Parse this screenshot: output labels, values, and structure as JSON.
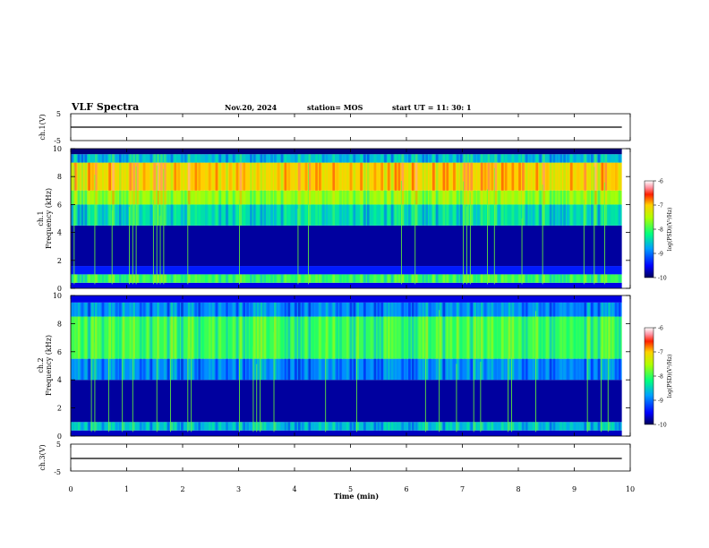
{
  "header": {
    "title": "VLF Spectra",
    "date": "Nov.20, 2024",
    "station": "station= MOS",
    "start": "start  UT =   11: 30: 1"
  },
  "chart_data": [
    {
      "type": "line",
      "panel": "ch1-waveform",
      "ylabel": "ch.1(V)",
      "ylim": [
        -5,
        5
      ],
      "yticks": [
        "5",
        "-5"
      ],
      "xlim": [
        0,
        10
      ],
      "series": [
        {
          "values_summary": [
            0,
            0
          ],
          "x": [
            0,
            9.85
          ]
        }
      ]
    },
    {
      "type": "heatmap",
      "panel": "ch1-spectrogram",
      "ylabel": "ch.1\nFrequency (kHz)",
      "ylim": [
        0,
        10
      ],
      "yticks": [
        "0",
        "2",
        "4",
        "6",
        "8",
        "10"
      ],
      "xlim": [
        0,
        10
      ],
      "data_end_min": 9.85,
      "colorbar": {
        "label": "log(PSD)(V²/Hz)",
        "range": [
          -10,
          -6
        ],
        "ticks": [
          "-6",
          "-7",
          "-8",
          "-9",
          "-10"
        ]
      },
      "bands": [
        {
          "from_khz": 0.0,
          "to_khz": 0.4,
          "level": -9.6
        },
        {
          "from_khz": 0.4,
          "to_khz": 1.0,
          "level": -8.0
        },
        {
          "from_khz": 1.0,
          "to_khz": 1.6,
          "level": -9.4
        },
        {
          "from_khz": 1.6,
          "to_khz": 4.5,
          "level": -9.8
        },
        {
          "from_khz": 4.5,
          "to_khz": 6.0,
          "level": -8.4
        },
        {
          "from_khz": 6.0,
          "to_khz": 7.0,
          "level": -7.6
        },
        {
          "from_khz": 7.0,
          "to_khz": 9.0,
          "level": -7.0
        },
        {
          "from_khz": 9.0,
          "to_khz": 9.6,
          "level": -8.6
        },
        {
          "from_khz": 9.6,
          "to_khz": 10.0,
          "level": -9.9
        }
      ]
    },
    {
      "type": "heatmap",
      "panel": "ch2-spectrogram",
      "ylabel": "ch.2\nFrequency (kHz)",
      "ylim": [
        0,
        10
      ],
      "yticks": [
        "0",
        "2",
        "4",
        "6",
        "8",
        "10"
      ],
      "xlim": [
        0,
        10
      ],
      "data_end_min": 9.85,
      "colorbar": {
        "label": "log(PSD)(V²/Hz)",
        "range": [
          -10,
          -6
        ],
        "ticks": [
          "-6",
          "-7",
          "-8",
          "-9",
          "-10"
        ]
      },
      "bands": [
        {
          "from_khz": 0.0,
          "to_khz": 0.4,
          "level": -9.7
        },
        {
          "from_khz": 0.4,
          "to_khz": 1.0,
          "level": -8.6
        },
        {
          "from_khz": 1.0,
          "to_khz": 4.0,
          "level": -9.8
        },
        {
          "from_khz": 4.0,
          "to_khz": 5.5,
          "level": -8.9
        },
        {
          "from_khz": 5.5,
          "to_khz": 8.5,
          "level": -8.0
        },
        {
          "from_khz": 8.5,
          "to_khz": 9.5,
          "level": -8.9
        },
        {
          "from_khz": 9.5,
          "to_khz": 10.0,
          "level": -9.6
        }
      ]
    },
    {
      "type": "line",
      "panel": "ch3-waveform",
      "ylabel": "ch.3(V)",
      "ylim": [
        -5,
        5
      ],
      "yticks": [
        "5",
        "-5"
      ],
      "xlim": [
        0,
        10
      ],
      "series": [
        {
          "values_summary": [
            0,
            0
          ],
          "x": [
            0,
            9.85
          ]
        }
      ]
    }
  ],
  "x_axis": {
    "label": "Time  (min)",
    "ticks": [
      "0",
      "1",
      "2",
      "3",
      "4",
      "5",
      "6",
      "7",
      "8",
      "9",
      "10"
    ]
  }
}
